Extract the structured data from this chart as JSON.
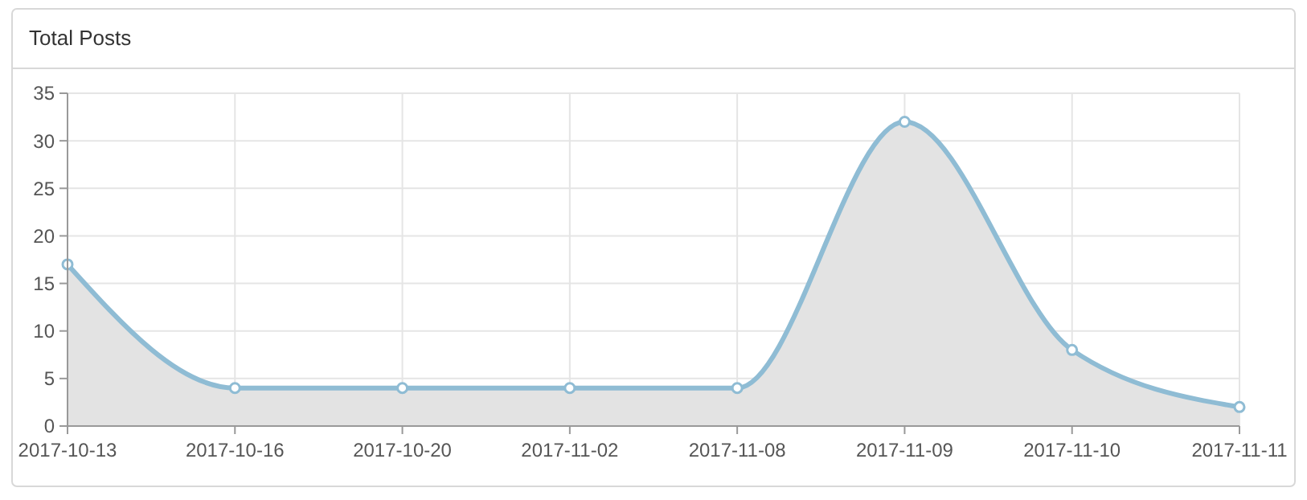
{
  "chart_data": {
    "type": "area",
    "title": "Total Posts",
    "categories": [
      "2017-10-13",
      "2017-10-16",
      "2017-10-20",
      "2017-11-02",
      "2017-11-08",
      "2017-11-09",
      "2017-11-10",
      "2017-11-11"
    ],
    "values": [
      17,
      4,
      4,
      4,
      4,
      32,
      8,
      2
    ],
    "color": "#8fbcd4",
    "ylim": [
      0,
      35
    ],
    "yticks": [
      0,
      5,
      10,
      15,
      20,
      25,
      30,
      35
    ],
    "grid": true,
    "marker": "circle"
  }
}
